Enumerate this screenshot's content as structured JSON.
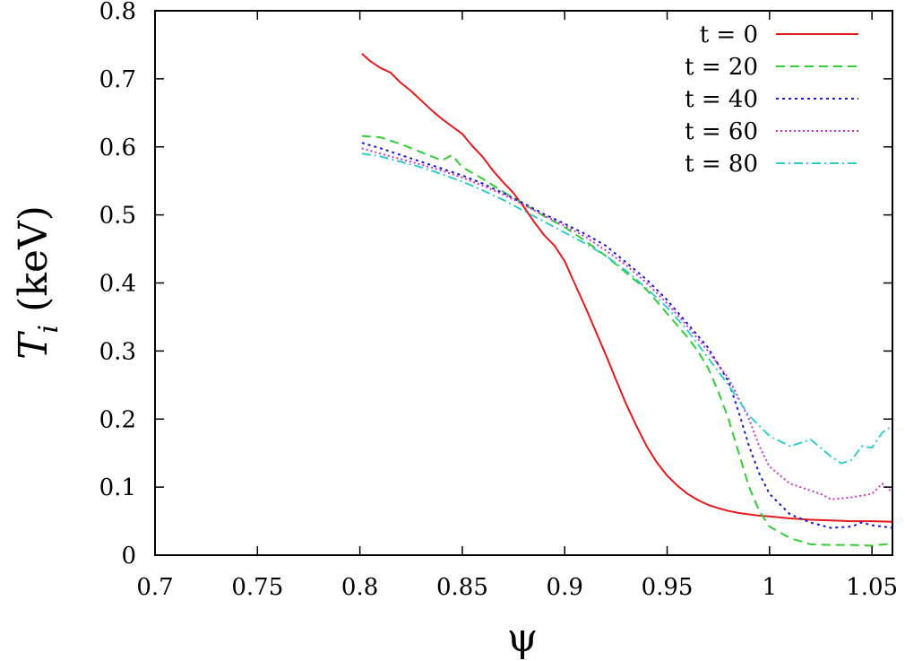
{
  "chart_data": {
    "type": "line",
    "title": "",
    "xlabel": "ψ",
    "ylabel": {
      "main": "T",
      "sub": "i",
      "unit": "(keV)"
    },
    "xlim": [
      0.7,
      1.06
    ],
    "ylim": [
      0,
      0.8
    ],
    "xticks": [
      "0.7",
      "0.75",
      "0.8",
      "0.85",
      "0.9",
      "0.95",
      "1",
      "1.05"
    ],
    "yticks": [
      "0",
      "0.1",
      "0.2",
      "0.3",
      "0.4",
      "0.5",
      "0.6",
      "0.7",
      "0.8"
    ],
    "grid": false,
    "legend_position": "top-right",
    "series": [
      {
        "name": "t = 0",
        "color": "#e41a1c",
        "dash": "solid",
        "x": [
          0.801,
          0.805,
          0.81,
          0.815,
          0.82,
          0.825,
          0.83,
          0.835,
          0.84,
          0.845,
          0.85,
          0.855,
          0.86,
          0.865,
          0.87,
          0.875,
          0.88,
          0.885,
          0.89,
          0.895,
          0.9,
          0.905,
          0.91,
          0.915,
          0.92,
          0.925,
          0.93,
          0.935,
          0.94,
          0.945,
          0.95,
          0.955,
          0.96,
          0.965,
          0.97,
          0.975,
          0.98,
          0.985,
          0.99,
          0.995,
          1.0,
          1.01,
          1.02,
          1.03,
          1.04,
          1.05,
          1.06
        ],
        "y": [
          0.737,
          0.726,
          0.716,
          0.709,
          0.694,
          0.682,
          0.668,
          0.654,
          0.641,
          0.63,
          0.619,
          0.601,
          0.585,
          0.565,
          0.548,
          0.532,
          0.512,
          0.49,
          0.47,
          0.455,
          0.432,
          0.398,
          0.365,
          0.33,
          0.295,
          0.258,
          0.222,
          0.19,
          0.16,
          0.136,
          0.117,
          0.102,
          0.09,
          0.081,
          0.074,
          0.069,
          0.065,
          0.062,
          0.06,
          0.058,
          0.057,
          0.054,
          0.052,
          0.051,
          0.05,
          0.05,
          0.049
        ]
      },
      {
        "name": "t = 20",
        "color": "#33cc33",
        "dash": "10,6",
        "x": [
          0.801,
          0.81,
          0.82,
          0.83,
          0.84,
          0.845,
          0.85,
          0.86,
          0.87,
          0.88,
          0.89,
          0.9,
          0.91,
          0.92,
          0.93,
          0.94,
          0.95,
          0.96,
          0.965,
          0.97,
          0.975,
          0.98,
          0.985,
          0.99,
          0.995,
          1.0,
          1.01,
          1.02,
          1.03,
          1.04,
          1.05,
          1.06
        ],
        "y": [
          0.616,
          0.614,
          0.604,
          0.592,
          0.58,
          0.588,
          0.57,
          0.553,
          0.534,
          0.516,
          0.498,
          0.482,
          0.462,
          0.44,
          0.415,
          0.39,
          0.355,
          0.32,
          0.3,
          0.275,
          0.24,
          0.2,
          0.15,
          0.1,
          0.065,
          0.042,
          0.025,
          0.016,
          0.015,
          0.015,
          0.014,
          0.017
        ]
      },
      {
        "name": "t = 40",
        "color": "#1a1acc",
        "dash": "3,4",
        "x": [
          0.801,
          0.81,
          0.82,
          0.83,
          0.84,
          0.85,
          0.86,
          0.87,
          0.88,
          0.89,
          0.9,
          0.91,
          0.92,
          0.93,
          0.94,
          0.95,
          0.96,
          0.97,
          0.98,
          0.985,
          0.99,
          0.995,
          1.0,
          1.01,
          1.02,
          1.03,
          1.04,
          1.045,
          1.05,
          1.06
        ],
        "y": [
          0.606,
          0.598,
          0.588,
          0.578,
          0.568,
          0.558,
          0.546,
          0.532,
          0.517,
          0.501,
          0.487,
          0.472,
          0.455,
          0.43,
          0.405,
          0.375,
          0.34,
          0.305,
          0.255,
          0.21,
          0.16,
          0.12,
          0.09,
          0.06,
          0.048,
          0.04,
          0.042,
          0.048,
          0.044,
          0.04
        ]
      },
      {
        "name": "t = 60",
        "color": "#cc33cc",
        "dash": "2,3",
        "x": [
          0.801,
          0.81,
          0.82,
          0.83,
          0.84,
          0.85,
          0.86,
          0.87,
          0.88,
          0.89,
          0.9,
          0.91,
          0.92,
          0.93,
          0.94,
          0.95,
          0.96,
          0.97,
          0.98,
          0.99,
          0.995,
          1.0,
          1.01,
          1.02,
          1.025,
          1.03,
          1.04,
          1.05,
          1.055,
          1.06
        ],
        "y": [
          0.598,
          0.59,
          0.582,
          0.574,
          0.565,
          0.555,
          0.543,
          0.53,
          0.515,
          0.499,
          0.484,
          0.468,
          0.448,
          0.426,
          0.4,
          0.37,
          0.336,
          0.3,
          0.26,
          0.2,
          0.16,
          0.13,
          0.105,
          0.095,
          0.09,
          0.082,
          0.085,
          0.09,
          0.105,
          0.092
        ]
      },
      {
        "name": "t = 80",
        "color": "#33cccc",
        "dash": "10,4,2,4",
        "x": [
          0.801,
          0.81,
          0.82,
          0.83,
          0.84,
          0.85,
          0.86,
          0.87,
          0.88,
          0.89,
          0.9,
          0.91,
          0.92,
          0.93,
          0.94,
          0.95,
          0.96,
          0.97,
          0.98,
          0.99,
          1.0,
          1.01,
          1.02,
          1.03,
          1.035,
          1.04,
          1.045,
          1.05,
          1.055,
          1.06
        ],
        "y": [
          0.59,
          0.586,
          0.578,
          0.57,
          0.56,
          0.549,
          0.536,
          0.522,
          0.506,
          0.49,
          0.474,
          0.458,
          0.44,
          0.418,
          0.392,
          0.364,
          0.33,
          0.29,
          0.25,
          0.205,
          0.175,
          0.16,
          0.17,
          0.145,
          0.135,
          0.14,
          0.16,
          0.158,
          0.18,
          0.19
        ]
      }
    ]
  }
}
